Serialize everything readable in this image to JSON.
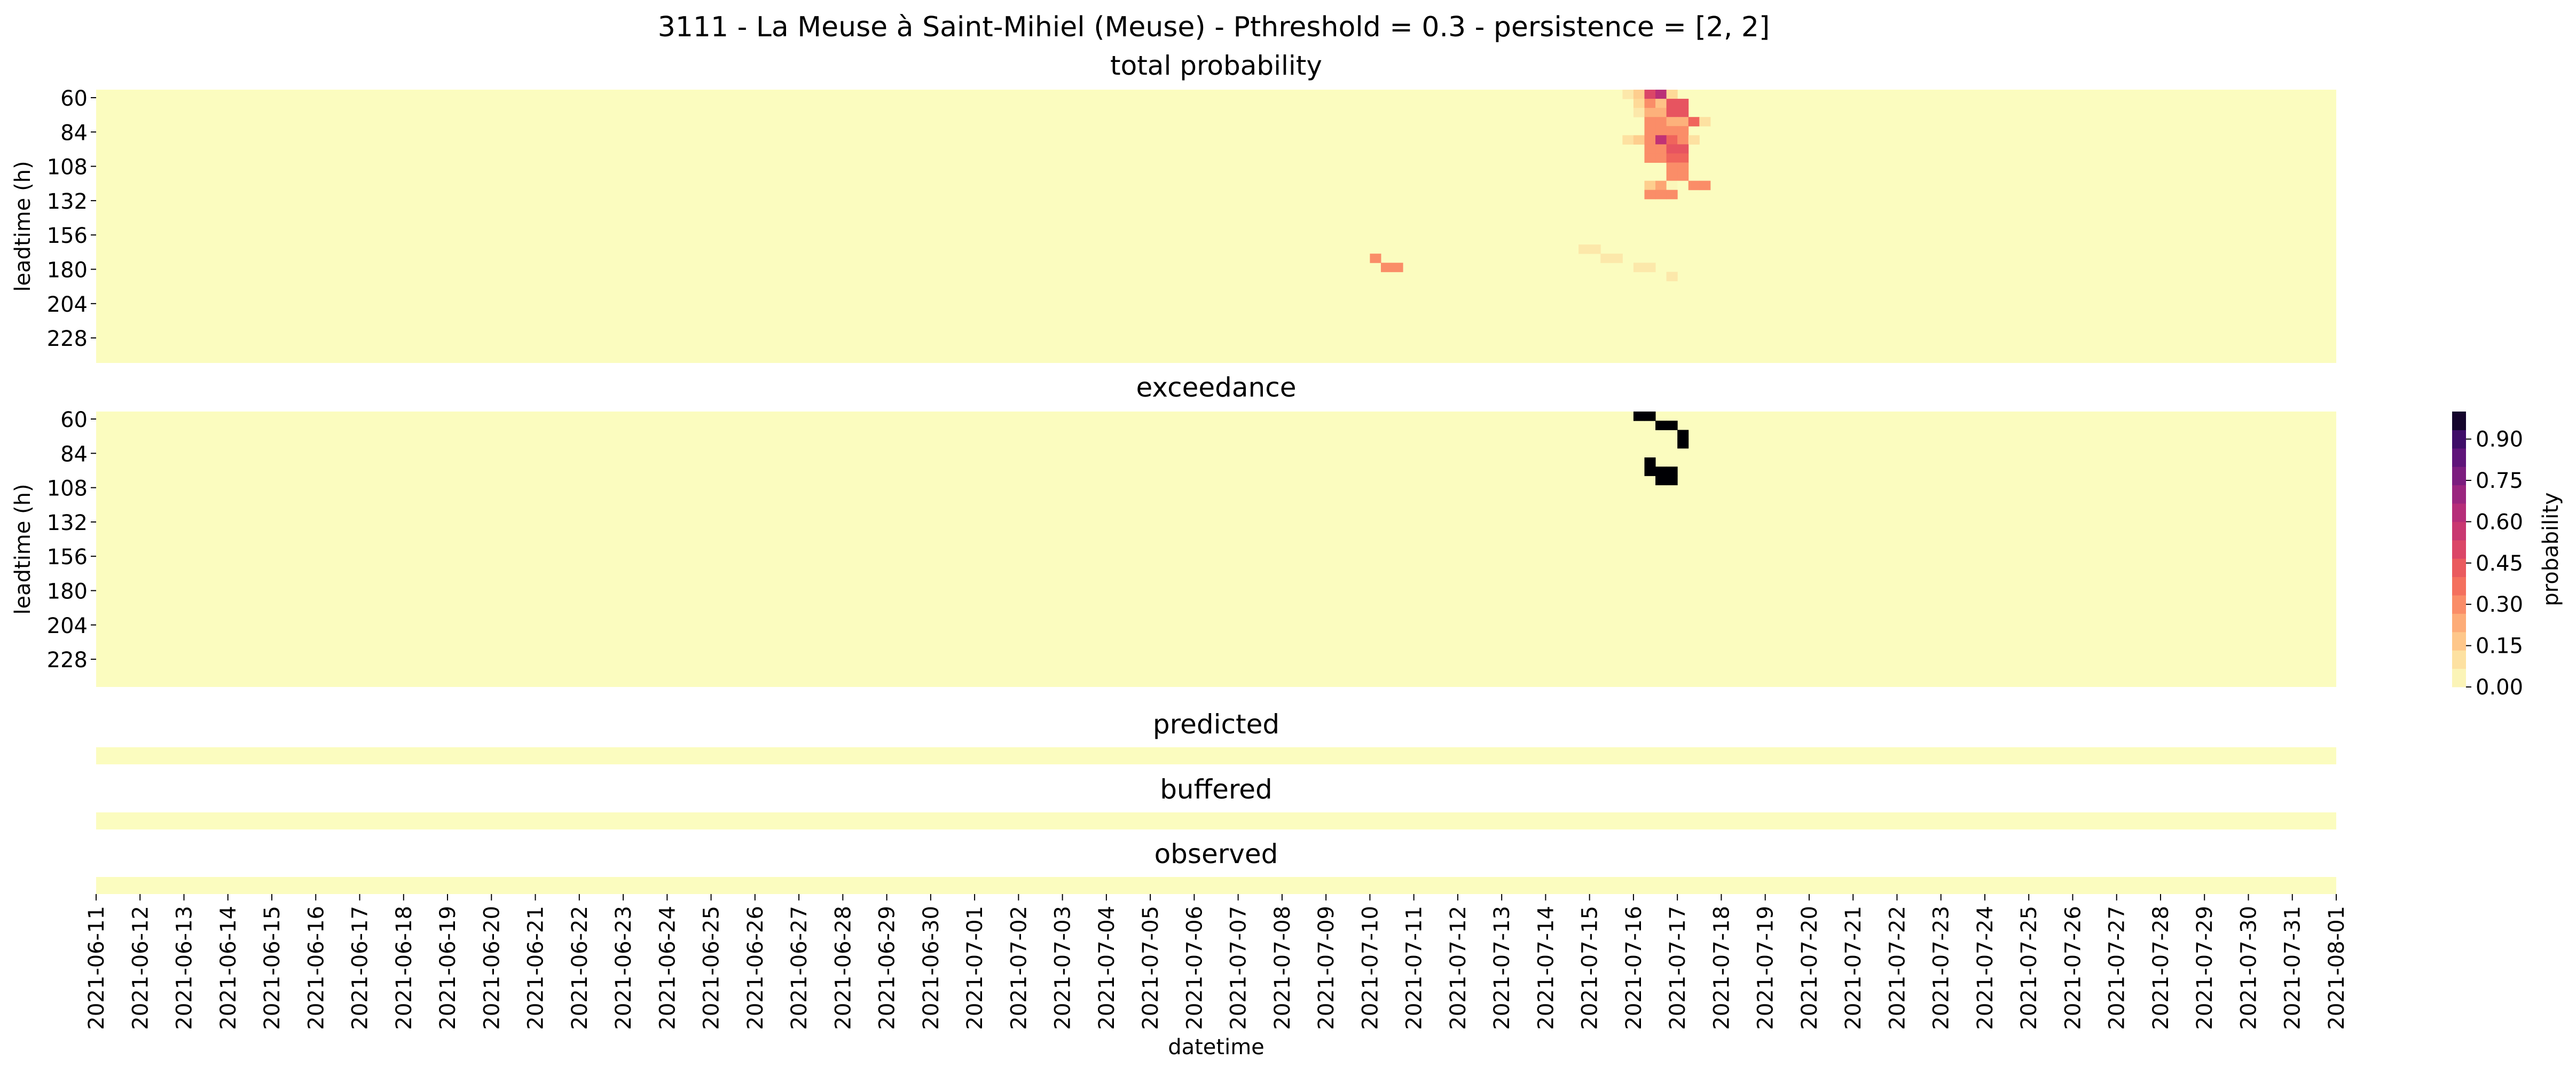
{
  "title": "3111 - La Meuse à Saint-Mihiel (Meuse) - Pthreshold = 0.3 - persistence = [2, 2]",
  "chart_data": {
    "type": "heatmap",
    "xlabel": "datetime",
    "x_tick_labels": [
      "2021-06-11",
      "2021-06-12",
      "2021-06-13",
      "2021-06-14",
      "2021-06-15",
      "2021-06-16",
      "2021-06-17",
      "2021-06-18",
      "2021-06-19",
      "2021-06-20",
      "2021-06-21",
      "2021-06-22",
      "2021-06-23",
      "2021-06-24",
      "2021-06-25",
      "2021-06-26",
      "2021-06-27",
      "2021-06-28",
      "2021-06-29",
      "2021-06-30",
      "2021-07-01",
      "2021-07-02",
      "2021-07-03",
      "2021-07-04",
      "2021-07-05",
      "2021-07-06",
      "2021-07-07",
      "2021-07-08",
      "2021-07-09",
      "2021-07-10",
      "2021-07-11",
      "2021-07-12",
      "2021-07-13",
      "2021-07-14",
      "2021-07-15",
      "2021-07-16",
      "2021-07-17",
      "2021-07-18",
      "2021-07-19",
      "2021-07-20",
      "2021-07-21",
      "2021-07-22",
      "2021-07-23",
      "2021-07-24",
      "2021-07-25",
      "2021-07-26",
      "2021-07-27",
      "2021-07-28",
      "2021-07-29",
      "2021-07-30",
      "2021-07-31",
      "2021-08-01"
    ],
    "x_start": "2021-06-11",
    "x_end": "2021-08-01",
    "colorbar": {
      "label": "probability",
      "min": 0.0,
      "max": 1.0,
      "ticks": [
        "0.00",
        "0.15",
        "0.30",
        "0.45",
        "0.60",
        "0.75",
        "0.90"
      ],
      "colormap": "magma_r"
    },
    "panels": [
      {
        "title": "total probability",
        "ylabel": "leadtime (h)",
        "y_tick_labels": [
          "60",
          "84",
          "108",
          "132",
          "156",
          "180",
          "204",
          "228"
        ],
        "leadtime_min": 60,
        "leadtime_max": 240,
        "leadtime_step": 6,
        "background_value": 0.0,
        "cells": [
          {
            "date": "2021-07-15T18",
            "leadtime": 60,
            "value": 0.08
          },
          {
            "date": "2021-07-16T00",
            "leadtime": 60,
            "value": 0.15
          },
          {
            "date": "2021-07-16T06",
            "leadtime": 60,
            "value": 0.5
          },
          {
            "date": "2021-07-16T12",
            "leadtime": 60,
            "value": 0.62
          },
          {
            "date": "2021-07-16T18",
            "leadtime": 60,
            "value": 0.12
          },
          {
            "date": "2021-07-16T00",
            "leadtime": 66,
            "value": 0.12
          },
          {
            "date": "2021-07-16T06",
            "leadtime": 66,
            "value": 0.3
          },
          {
            "date": "2021-07-16T12",
            "leadtime": 66,
            "value": 0.18
          },
          {
            "date": "2021-07-16T18",
            "leadtime": 66,
            "value": 0.45
          },
          {
            "date": "2021-07-17T00",
            "leadtime": 66,
            "value": 0.45
          },
          {
            "date": "2021-07-16T00",
            "leadtime": 72,
            "value": 0.08
          },
          {
            "date": "2021-07-16T06",
            "leadtime": 72,
            "value": 0.22
          },
          {
            "date": "2021-07-16T12",
            "leadtime": 72,
            "value": 0.22
          },
          {
            "date": "2021-07-16T18",
            "leadtime": 72,
            "value": 0.45
          },
          {
            "date": "2021-07-17T00",
            "leadtime": 72,
            "value": 0.45
          },
          {
            "date": "2021-07-16T06",
            "leadtime": 78,
            "value": 0.3
          },
          {
            "date": "2021-07-16T12",
            "leadtime": 78,
            "value": 0.3
          },
          {
            "date": "2021-07-16T18",
            "leadtime": 78,
            "value": 0.22
          },
          {
            "date": "2021-07-17T00",
            "leadtime": 78,
            "value": 0.22
          },
          {
            "date": "2021-07-17T06",
            "leadtime": 78,
            "value": 0.4
          },
          {
            "date": "2021-07-17T12",
            "leadtime": 78,
            "value": 0.1
          },
          {
            "date": "2021-07-16T06",
            "leadtime": 84,
            "value": 0.3
          },
          {
            "date": "2021-07-16T12",
            "leadtime": 84,
            "value": 0.3
          },
          {
            "date": "2021-07-16T18",
            "leadtime": 84,
            "value": 0.3
          },
          {
            "date": "2021-07-17T00",
            "leadtime": 84,
            "value": 0.3
          },
          {
            "date": "2021-07-15T18",
            "leadtime": 90,
            "value": 0.1
          },
          {
            "date": "2021-07-16T00",
            "leadtime": 90,
            "value": 0.15
          },
          {
            "date": "2021-07-16T06",
            "leadtime": 90,
            "value": 0.3
          },
          {
            "date": "2021-07-16T12",
            "leadtime": 90,
            "value": 0.6
          },
          {
            "date": "2021-07-16T18",
            "leadtime": 90,
            "value": 0.4
          },
          {
            "date": "2021-07-17T00",
            "leadtime": 90,
            "value": 0.3
          },
          {
            "date": "2021-07-17T06",
            "leadtime": 90,
            "value": 0.1
          },
          {
            "date": "2021-07-16T06",
            "leadtime": 96,
            "value": 0.3
          },
          {
            "date": "2021-07-16T12",
            "leadtime": 96,
            "value": 0.3
          },
          {
            "date": "2021-07-16T18",
            "leadtime": 96,
            "value": 0.45
          },
          {
            "date": "2021-07-17T00",
            "leadtime": 96,
            "value": 0.45
          },
          {
            "date": "2021-07-16T06",
            "leadtime": 102,
            "value": 0.3
          },
          {
            "date": "2021-07-16T12",
            "leadtime": 102,
            "value": 0.3
          },
          {
            "date": "2021-07-16T18",
            "leadtime": 102,
            "value": 0.4
          },
          {
            "date": "2021-07-17T00",
            "leadtime": 102,
            "value": 0.4
          },
          {
            "date": "2021-07-16T18",
            "leadtime": 108,
            "value": 0.3
          },
          {
            "date": "2021-07-17T00",
            "leadtime": 108,
            "value": 0.3
          },
          {
            "date": "2021-07-16T18",
            "leadtime": 114,
            "value": 0.3
          },
          {
            "date": "2021-07-17T00",
            "leadtime": 114,
            "value": 0.3
          },
          {
            "date": "2021-07-16T06",
            "leadtime": 120,
            "value": 0.15
          },
          {
            "date": "2021-07-16T12",
            "leadtime": 120,
            "value": 0.25
          },
          {
            "date": "2021-07-16T18",
            "leadtime": 120,
            "value": 0.02
          },
          {
            "date": "2021-07-17T00",
            "leadtime": 120,
            "value": 0.0
          },
          {
            "date": "2021-07-17T06",
            "leadtime": 120,
            "value": 0.3
          },
          {
            "date": "2021-07-17T12",
            "leadtime": 120,
            "value": 0.3
          },
          {
            "date": "2021-07-16T06",
            "leadtime": 126,
            "value": 0.3
          },
          {
            "date": "2021-07-16T12",
            "leadtime": 126,
            "value": 0.3
          },
          {
            "date": "2021-07-16T18",
            "leadtime": 126,
            "value": 0.3
          },
          {
            "date": "2021-07-14T18",
            "leadtime": 162,
            "value": 0.08
          },
          {
            "date": "2021-07-15T00",
            "leadtime": 162,
            "value": 0.08
          },
          {
            "date": "2021-07-15T06",
            "leadtime": 168,
            "value": 0.08
          },
          {
            "date": "2021-07-15T12",
            "leadtime": 168,
            "value": 0.08
          },
          {
            "date": "2021-07-10T00",
            "leadtime": 168,
            "value": 0.3
          },
          {
            "date": "2021-07-10T06",
            "leadtime": 174,
            "value": 0.3
          },
          {
            "date": "2021-07-10T12",
            "leadtime": 174,
            "value": 0.3
          },
          {
            "date": "2021-07-16T00",
            "leadtime": 174,
            "value": 0.08
          },
          {
            "date": "2021-07-16T06",
            "leadtime": 174,
            "value": 0.08
          },
          {
            "date": "2021-07-16T18",
            "leadtime": 180,
            "value": 0.08
          }
        ]
      },
      {
        "title": "exceedance",
        "ylabel": "leadtime (h)",
        "y_tick_labels": [
          "60",
          "84",
          "108",
          "132",
          "156",
          "180",
          "204",
          "228"
        ],
        "leadtime_min": 60,
        "leadtime_max": 240,
        "leadtime_step": 6,
        "background_value": 0.0,
        "cells": [
          {
            "date": "2021-07-16T00",
            "leadtime": 60,
            "value": 1.0
          },
          {
            "date": "2021-07-16T06",
            "leadtime": 60,
            "value": 1.0
          },
          {
            "date": "2021-07-16T12",
            "leadtime": 66,
            "value": 1.0
          },
          {
            "date": "2021-07-16T18",
            "leadtime": 66,
            "value": 1.0
          },
          {
            "date": "2021-07-17T00",
            "leadtime": 72,
            "value": 1.0
          },
          {
            "date": "2021-07-17T00",
            "leadtime": 78,
            "value": 1.0
          },
          {
            "date": "2021-07-16T06",
            "leadtime": 90,
            "value": 1.0
          },
          {
            "date": "2021-07-16T06",
            "leadtime": 96,
            "value": 1.0
          },
          {
            "date": "2021-07-16T12",
            "leadtime": 96,
            "value": 1.0
          },
          {
            "date": "2021-07-16T18",
            "leadtime": 96,
            "value": 1.0
          },
          {
            "date": "2021-07-16T12",
            "leadtime": 102,
            "value": 1.0
          },
          {
            "date": "2021-07-16T18",
            "leadtime": 102,
            "value": 1.0
          }
        ]
      },
      {
        "title": "predicted",
        "background_value": 0.0,
        "cells": []
      },
      {
        "title": "buffered",
        "background_value": 0.0,
        "cells": []
      },
      {
        "title": "observed",
        "background_value": 0.0,
        "cells": []
      }
    ]
  }
}
